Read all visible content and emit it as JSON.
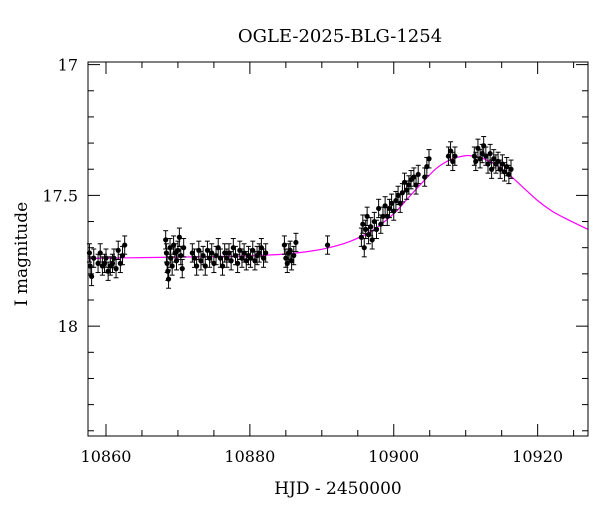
{
  "chart_data": {
    "type": "scatter",
    "title": "OGLE-2025-BLG-1254",
    "xlabel": "HJD - 2450000",
    "ylabel": "I magnitude",
    "xlim": [
      10857.5,
      10927
    ],
    "ylim": [
      18.42,
      16.99
    ],
    "y_inverted": true,
    "x_major_ticks": [
      10860,
      10880,
      10900,
      10920
    ],
    "y_major_ticks": [
      17,
      17.5,
      18
    ],
    "x_tick_labels": [
      "10860",
      "10880",
      "10900",
      "10920"
    ],
    "y_tick_labels": [
      "17",
      "17.5",
      "18"
    ],
    "x_minor_step": 5,
    "y_minor_step": 0.1,
    "grid": false,
    "colors": {
      "data": "#000000",
      "model": "#ff00ff",
      "frame": "#000000"
    },
    "series": [
      {
        "kind": "points_with_errorbars",
        "error": 0.035,
        "points": [
          [
            10857.7,
            17.72
          ],
          [
            10857.8,
            17.77
          ],
          [
            10858.0,
            17.81
          ],
          [
            10858.3,
            17.74
          ],
          [
            10858.9,
            17.76
          ],
          [
            10859.2,
            17.72
          ],
          [
            10859.5,
            17.77
          ],
          [
            10859.8,
            17.76
          ],
          [
            10860.0,
            17.74
          ],
          [
            10860.3,
            17.79
          ],
          [
            10860.6,
            17.77
          ],
          [
            10860.9,
            17.76
          ],
          [
            10861.1,
            17.74
          ],
          [
            10861.4,
            17.78
          ],
          [
            10861.7,
            17.71
          ],
          [
            10862.0,
            17.76
          ],
          [
            10862.3,
            17.73
          ],
          [
            10862.6,
            17.69
          ],
          [
            10868.3,
            17.67
          ],
          [
            10868.4,
            17.72
          ],
          [
            10868.5,
            17.76
          ],
          [
            10868.6,
            17.79
          ],
          [
            10868.7,
            17.82
          ],
          [
            10868.9,
            17.7
          ],
          [
            10869.0,
            17.74
          ],
          [
            10869.2,
            17.77
          ],
          [
            10869.4,
            17.69
          ],
          [
            10869.6,
            17.72
          ],
          [
            10869.8,
            17.75
          ],
          [
            10870.0,
            17.71
          ],
          [
            10870.2,
            17.66
          ],
          [
            10870.4,
            17.73
          ],
          [
            10870.6,
            17.78
          ],
          [
            10870.8,
            17.7
          ],
          [
            10872.0,
            17.72
          ],
          [
            10872.3,
            17.74
          ],
          [
            10872.6,
            17.77
          ],
          [
            10872.9,
            17.71
          ],
          [
            10873.2,
            17.75
          ],
          [
            10873.5,
            17.73
          ],
          [
            10873.8,
            17.77
          ],
          [
            10874.1,
            17.71
          ],
          [
            10874.4,
            17.74
          ],
          [
            10874.7,
            17.72
          ],
          [
            10875.0,
            17.76
          ],
          [
            10875.3,
            17.73
          ],
          [
            10875.6,
            17.7
          ],
          [
            10875.9,
            17.74
          ],
          [
            10876.2,
            17.77
          ],
          [
            10876.5,
            17.72
          ],
          [
            10876.8,
            17.74
          ],
          [
            10877.1,
            17.72
          ],
          [
            10877.4,
            17.75
          ],
          [
            10877.7,
            17.7
          ],
          [
            10878.0,
            17.73
          ],
          [
            10878.3,
            17.76
          ],
          [
            10878.6,
            17.71
          ],
          [
            10878.9,
            17.74
          ],
          [
            10879.2,
            17.72
          ],
          [
            10879.5,
            17.75
          ],
          [
            10879.8,
            17.73
          ],
          [
            10880.1,
            17.74
          ],
          [
            10880.4,
            17.71
          ],
          [
            10880.7,
            17.75
          ],
          [
            10881.0,
            17.73
          ],
          [
            10881.3,
            17.72
          ],
          [
            10881.6,
            17.7
          ],
          [
            10881.9,
            17.74
          ],
          [
            10882.2,
            17.72
          ],
          [
            10884.8,
            17.69
          ],
          [
            10885.0,
            17.74
          ],
          [
            10885.2,
            17.76
          ],
          [
            10885.4,
            17.72
          ],
          [
            10885.6,
            17.71
          ],
          [
            10885.8,
            17.75
          ],
          [
            10886.1,
            17.73
          ],
          [
            10886.4,
            17.68
          ],
          [
            10890.8,
            17.69
          ],
          [
            10895.5,
            17.66
          ],
          [
            10895.7,
            17.61
          ],
          [
            10895.9,
            17.7
          ],
          [
            10896.1,
            17.63
          ],
          [
            10896.3,
            17.58
          ],
          [
            10896.5,
            17.65
          ],
          [
            10896.8,
            17.62
          ],
          [
            10897.0,
            17.67
          ],
          [
            10897.3,
            17.6
          ],
          [
            10897.6,
            17.63
          ],
          [
            10897.9,
            17.55
          ],
          [
            10898.2,
            17.61
          ],
          [
            10898.5,
            17.58
          ],
          [
            10898.8,
            17.54
          ],
          [
            10899.1,
            17.58
          ],
          [
            10899.4,
            17.55
          ],
          [
            10899.7,
            17.53
          ],
          [
            10900.0,
            17.56
          ],
          [
            10900.3,
            17.52
          ],
          [
            10900.6,
            17.5
          ],
          [
            10900.9,
            17.53
          ],
          [
            10901.2,
            17.49
          ],
          [
            10901.5,
            17.45
          ],
          [
            10901.8,
            17.48
          ],
          [
            10902.1,
            17.46
          ],
          [
            10902.4,
            17.44
          ],
          [
            10902.8,
            17.43
          ],
          [
            10903.1,
            17.46
          ],
          [
            10903.4,
            17.42
          ],
          [
            10904.3,
            17.43
          ],
          [
            10904.6,
            17.39
          ],
          [
            10904.9,
            17.36
          ],
          [
            10907.6,
            17.35
          ],
          [
            10907.9,
            17.33
          ],
          [
            10908.2,
            17.37
          ],
          [
            10908.5,
            17.35
          ],
          [
            10911.2,
            17.35
          ],
          [
            10911.4,
            17.37
          ],
          [
            10911.7,
            17.32
          ],
          [
            10912.0,
            17.36
          ],
          [
            10912.3,
            17.34
          ],
          [
            10912.5,
            17.31
          ],
          [
            10912.8,
            17.35
          ],
          [
            10913.1,
            17.38
          ],
          [
            10913.4,
            17.34
          ],
          [
            10913.6,
            17.4
          ],
          [
            10913.9,
            17.36
          ],
          [
            10914.2,
            17.38
          ],
          [
            10914.5,
            17.37
          ],
          [
            10914.8,
            17.4
          ],
          [
            10915.1,
            17.38
          ],
          [
            10915.4,
            17.41
          ],
          [
            10915.7,
            17.39
          ],
          [
            10916.0,
            17.42
          ],
          [
            10916.3,
            17.4
          ]
        ]
      },
      {
        "kind": "model_curve",
        "curve": [
          [
            10857.5,
            17.741
          ],
          [
            10860,
            17.74
          ],
          [
            10865,
            17.738
          ],
          [
            10870,
            17.736
          ],
          [
            10875,
            17.734
          ],
          [
            10880,
            17.731
          ],
          [
            10885,
            17.724
          ],
          [
            10888,
            17.715
          ],
          [
            10891,
            17.7
          ],
          [
            10894,
            17.675
          ],
          [
            10897,
            17.635
          ],
          [
            10900,
            17.57
          ],
          [
            10902,
            17.51
          ],
          [
            10904,
            17.45
          ],
          [
            10906,
            17.395
          ],
          [
            10908,
            17.362
          ],
          [
            10910,
            17.348
          ],
          [
            10911,
            17.35
          ],
          [
            10912,
            17.355
          ],
          [
            10914,
            17.38
          ],
          [
            10916,
            17.42
          ],
          [
            10918,
            17.47
          ],
          [
            10920,
            17.52
          ],
          [
            10922,
            17.56
          ],
          [
            10924,
            17.59
          ],
          [
            10927,
            17.63
          ]
        ]
      }
    ]
  }
}
